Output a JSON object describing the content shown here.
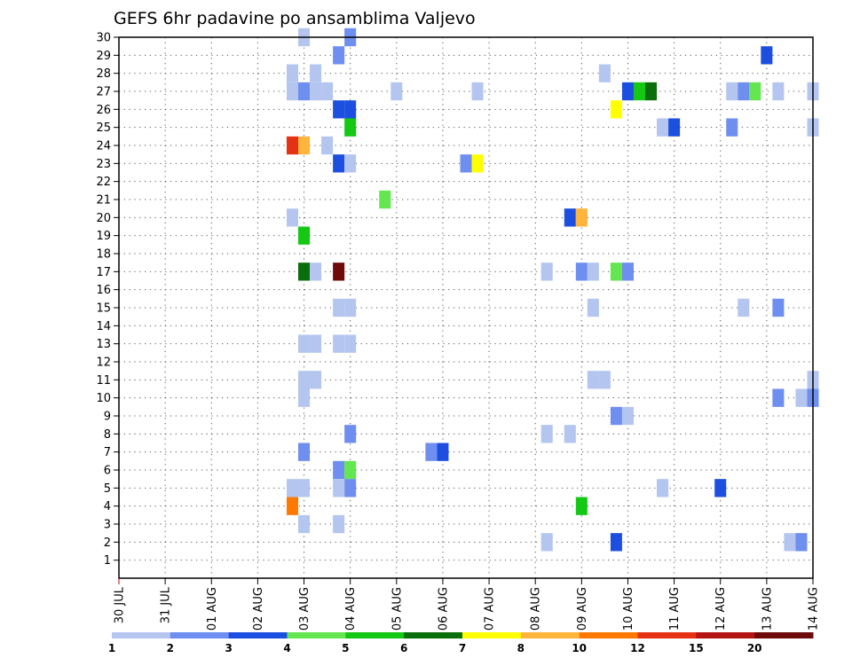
{
  "chart_data": {
    "type": "heatmap",
    "title": "GEFS 6hr padavine po ansamblima Valjevo",
    "xlabel": "",
    "ylabel": "",
    "x_tick_labels": [
      "30 JUL",
      "31 JUL",
      "01 AUG",
      "02 AUG",
      "03 AUG",
      "04 AUG",
      "05 AUG",
      "06 AUG",
      "07 AUG",
      "08 AUG",
      "09 AUG",
      "10 AUG",
      "11 AUG",
      "12 AUG",
      "13 AUG",
      "14 AUG"
    ],
    "x_range_days": [
      0,
      15
    ],
    "y_tick_labels": [
      "1",
      "2",
      "3",
      "4",
      "5",
      "6",
      "7",
      "8",
      "9",
      "10",
      "11",
      "12",
      "13",
      "14",
      "15",
      "16",
      "17",
      "18",
      "19",
      "20",
      "21",
      "22",
      "23",
      "24",
      "25",
      "26",
      "27",
      "28",
      "29",
      "30"
    ],
    "y_range": [
      0,
      30
    ],
    "grid": true,
    "time_step_hours": 6,
    "colorbar": {
      "labels": [
        "1",
        "2",
        "3",
        "4",
        "5",
        "6",
        "7",
        "8",
        "10",
        "12",
        "15",
        "20"
      ],
      "colors": [
        "#b4c6f0",
        "#6e8ef0",
        "#1c4fe0",
        "#64e650",
        "#14c814",
        "#0a6e0a",
        "#ffff00",
        "#ffb43c",
        "#ff7800",
        "#e63214",
        "#b41414",
        "#6e0a0a"
      ]
    },
    "cells_legend": "each cell: [member, day_offset_from_30_JUL (6-hourly steps of 0.25), color_class_index]",
    "cells": [
      [
        30,
        4.0,
        0
      ],
      [
        30,
        5.0,
        1
      ],
      [
        29,
        4.75,
        1
      ],
      [
        29,
        14.0,
        2
      ],
      [
        28,
        3.75,
        0
      ],
      [
        28,
        4.25,
        0
      ],
      [
        28,
        10.5,
        0
      ],
      [
        27,
        3.75,
        0
      ],
      [
        27,
        4.0,
        1
      ],
      [
        27,
        4.25,
        0
      ],
      [
        27,
        4.5,
        0
      ],
      [
        27,
        6.0,
        0
      ],
      [
        27,
        7.75,
        0
      ],
      [
        27,
        11.0,
        2
      ],
      [
        27,
        11.25,
        4
      ],
      [
        27,
        11.5,
        5
      ],
      [
        27,
        13.25,
        0
      ],
      [
        27,
        13.5,
        1
      ],
      [
        27,
        13.75,
        3
      ],
      [
        27,
        14.25,
        0
      ],
      [
        27,
        15.0,
        0
      ],
      [
        26,
        4.75,
        2
      ],
      [
        26,
        5.0,
        2
      ],
      [
        26,
        10.75,
        6
      ],
      [
        25,
        5.0,
        4
      ],
      [
        25,
        11.75,
        0
      ],
      [
        25,
        12.0,
        2
      ],
      [
        25,
        13.25,
        1
      ],
      [
        25,
        15.0,
        0
      ],
      [
        24,
        3.75,
        9
      ],
      [
        24,
        4.0,
        7
      ],
      [
        24,
        4.5,
        0
      ],
      [
        23,
        4.75,
        2
      ],
      [
        23,
        5.0,
        0
      ],
      [
        23,
        7.5,
        1
      ],
      [
        23,
        7.75,
        6
      ],
      [
        21,
        5.75,
        3
      ],
      [
        20,
        3.75,
        0
      ],
      [
        20,
        9.75,
        2
      ],
      [
        20,
        10.0,
        7
      ],
      [
        19,
        4.0,
        4
      ],
      [
        17,
        4.0,
        5
      ],
      [
        17,
        4.25,
        0
      ],
      [
        17,
        4.75,
        11
      ],
      [
        17,
        9.25,
        0
      ],
      [
        17,
        10.0,
        1
      ],
      [
        17,
        10.25,
        0
      ],
      [
        17,
        10.75,
        3
      ],
      [
        17,
        11.0,
        1
      ],
      [
        15,
        4.75,
        0
      ],
      [
        15,
        5.0,
        0
      ],
      [
        15,
        10.25,
        0
      ],
      [
        15,
        13.5,
        0
      ],
      [
        15,
        14.25,
        1
      ],
      [
        13,
        4.0,
        0
      ],
      [
        13,
        4.25,
        0
      ],
      [
        13,
        4.75,
        0
      ],
      [
        13,
        5.0,
        0
      ],
      [
        11,
        4.0,
        0
      ],
      [
        11,
        4.25,
        0
      ],
      [
        11,
        10.25,
        0
      ],
      [
        11,
        10.5,
        0
      ],
      [
        11,
        15.0,
        0
      ],
      [
        10,
        4.0,
        0
      ],
      [
        10,
        14.25,
        1
      ],
      [
        10,
        14.75,
        0
      ],
      [
        10,
        15.0,
        1
      ],
      [
        9,
        10.75,
        1
      ],
      [
        9,
        11.0,
        0
      ],
      [
        8,
        5.0,
        1
      ],
      [
        8,
        9.25,
        0
      ],
      [
        8,
        9.75,
        0
      ],
      [
        7,
        4.0,
        1
      ],
      [
        7,
        6.75,
        1
      ],
      [
        7,
        7.0,
        2
      ],
      [
        6,
        4.75,
        1
      ],
      [
        6,
        5.0,
        3
      ],
      [
        5,
        3.75,
        0
      ],
      [
        5,
        4.0,
        0
      ],
      [
        5,
        4.75,
        0
      ],
      [
        5,
        5.0,
        1
      ],
      [
        5,
        11.75,
        0
      ],
      [
        5,
        13.0,
        2
      ],
      [
        4,
        3.75,
        8
      ],
      [
        4,
        10.0,
        4
      ],
      [
        3,
        4.0,
        0
      ],
      [
        3,
        4.75,
        0
      ],
      [
        2,
        9.25,
        0
      ],
      [
        2,
        10.75,
        2
      ],
      [
        2,
        14.5,
        0
      ],
      [
        2,
        14.75,
        1
      ]
    ]
  }
}
